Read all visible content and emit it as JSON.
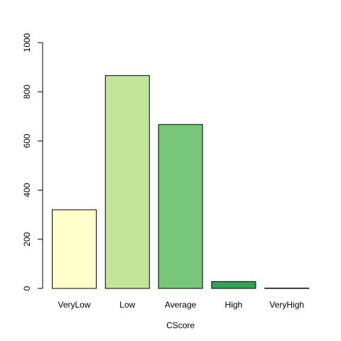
{
  "chart_data": {
    "type": "bar",
    "title": "",
    "xlabel": "CScore",
    "ylabel": "",
    "categories": [
      "VeryLow",
      "Low",
      "Average",
      "High",
      "VeryHigh"
    ],
    "values": [
      320,
      866,
      667,
      28,
      1
    ],
    "ylim": [
      0,
      1000
    ],
    "yticks": [
      0,
      200,
      400,
      600,
      800,
      1000
    ],
    "grid": false,
    "legend": "none",
    "colors": [
      "#ffffcc",
      "#c2e699",
      "#78c679",
      "#31a354",
      "#006837"
    ],
    "bar_border_color": "#000000"
  }
}
